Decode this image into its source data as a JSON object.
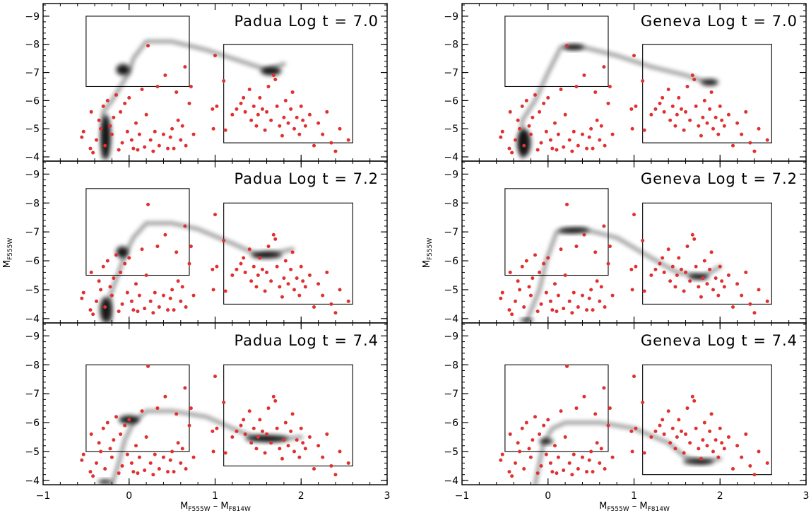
{
  "figure": {
    "xlabel_main": "M",
    "xlabel_sub1": "F555W",
    "xlabel_dash": " – M",
    "xlabel_sub2": "F814W",
    "ylabel_main": "M",
    "ylabel_sub": "F555W"
  },
  "colors": {
    "data_points": "#e03030",
    "isochrone": "#000000",
    "frame": "#000000"
  },
  "chart_data": [
    {
      "type": "scatter",
      "title": "Padua Log t = 7.0",
      "xlim": [
        -1,
        3
      ],
      "ylim": [
        -3.85,
        -9.45
      ],
      "xticks": [
        -1,
        0,
        1,
        2,
        3
      ],
      "yticks": [
        -4,
        -5,
        -6,
        -7,
        -8,
        -9
      ],
      "boxes": [
        {
          "x": [
            -0.5,
            0.7
          ],
          "y": [
            -6.5,
            -9.0
          ]
        },
        {
          "x": [
            1.1,
            2.6
          ],
          "y": [
            -4.5,
            -8.0
          ]
        }
      ],
      "isochrone": [
        [
          -0.3,
          -4.0
        ],
        [
          -0.3,
          -5.6
        ],
        [
          -0.2,
          -6.0
        ],
        [
          0.0,
          -7.0
        ],
        [
          0.05,
          -7.5
        ],
        [
          0.2,
          -8.1
        ],
        [
          0.5,
          -8.1
        ],
        [
          0.9,
          -7.8
        ],
        [
          1.3,
          -7.4
        ],
        [
          1.6,
          -7.1
        ],
        [
          1.8,
          -7.3
        ]
      ],
      "blobs": [
        {
          "x": -0.27,
          "y": -4.7,
          "rx": 0.06,
          "ry": 0.8
        },
        {
          "x": -0.07,
          "y": -7.1,
          "rx": 0.08,
          "ry": 0.2
        },
        {
          "x": 1.65,
          "y": -7.05,
          "rx": 0.12,
          "ry": 0.15
        }
      ]
    },
    {
      "type": "scatter",
      "title": "Padua Log t = 7.2",
      "xlim": [
        -1,
        3
      ],
      "ylim": [
        -3.85,
        -9.45
      ],
      "xticks": [
        -1,
        0,
        1,
        2,
        3
      ],
      "yticks": [
        -4,
        -5,
        -6,
        -7,
        -8,
        -9
      ],
      "boxes": [
        {
          "x": [
            -0.5,
            0.7
          ],
          "y": [
            -5.5,
            -8.5
          ]
        },
        {
          "x": [
            1.1,
            2.6
          ],
          "y": [
            -4.5,
            -8.0
          ]
        }
      ],
      "isochrone": [
        [
          -0.22,
          -3.9
        ],
        [
          -0.22,
          -4.8
        ],
        [
          -0.12,
          -5.6
        ],
        [
          -0.05,
          -6.2
        ],
        [
          0.05,
          -6.8
        ],
        [
          0.2,
          -7.3
        ],
        [
          0.5,
          -7.3
        ],
        [
          0.8,
          -7.1
        ],
        [
          1.2,
          -6.6
        ],
        [
          1.5,
          -6.2
        ],
        [
          1.75,
          -6.3
        ],
        [
          1.9,
          -6.4
        ]
      ],
      "blobs": [
        {
          "x": -0.27,
          "y": -4.3,
          "rx": 0.07,
          "ry": 0.45
        },
        {
          "x": -0.08,
          "y": -6.3,
          "rx": 0.07,
          "ry": 0.2
        },
        {
          "x": 1.6,
          "y": -6.2,
          "rx": 0.18,
          "ry": 0.12
        }
      ]
    },
    {
      "type": "scatter",
      "title": "Padua Log t = 7.4",
      "xlim": [
        -1,
        3
      ],
      "ylim": [
        -3.85,
        -9.45
      ],
      "xticks": [
        -1,
        0,
        1,
        2,
        3
      ],
      "yticks": [
        -4,
        -5,
        -6,
        -7,
        -8,
        -9
      ],
      "boxes": [
        {
          "x": [
            -0.5,
            0.7
          ],
          "y": [
            -5.0,
            -8.0
          ]
        },
        {
          "x": [
            1.1,
            2.6
          ],
          "y": [
            -4.5,
            -8.0
          ]
        }
      ],
      "isochrone": [
        [
          -0.2,
          -3.85
        ],
        [
          -0.12,
          -4.6
        ],
        [
          -0.05,
          -5.4
        ],
        [
          0.05,
          -6.0
        ],
        [
          0.2,
          -6.4
        ],
        [
          0.5,
          -6.4
        ],
        [
          0.9,
          -6.2
        ],
        [
          1.2,
          -5.8
        ],
        [
          1.45,
          -5.5
        ],
        [
          1.7,
          -5.4
        ],
        [
          2.0,
          -5.5
        ]
      ],
      "blobs": [
        {
          "x": 0.0,
          "y": -6.1,
          "rx": 0.12,
          "ry": 0.15
        },
        {
          "x": 1.6,
          "y": -5.45,
          "rx": 0.25,
          "ry": 0.12
        },
        {
          "x": -0.28,
          "y": -3.95,
          "rx": 0.08,
          "ry": 0.08
        }
      ]
    },
    {
      "type": "scatter",
      "title": "Geneva Log t = 7.0",
      "xlim": [
        -1,
        3
      ],
      "ylim": [
        -3.85,
        -9.45
      ],
      "xticks": [
        -1,
        0,
        1,
        2,
        3
      ],
      "yticks": [
        -4,
        -5,
        -6,
        -7,
        -8,
        -9
      ],
      "boxes": [
        {
          "x": [
            -0.5,
            0.7
          ],
          "y": [
            -6.5,
            -9.0
          ]
        },
        {
          "x": [
            1.1,
            2.6
          ],
          "y": [
            -4.5,
            -8.0
          ]
        }
      ],
      "isochrone": [
        [
          -0.3,
          -4.0
        ],
        [
          -0.3,
          -5.3
        ],
        [
          -0.15,
          -6.0
        ],
        [
          0.0,
          -7.0
        ],
        [
          0.15,
          -7.9
        ],
        [
          0.4,
          -7.9
        ],
        [
          0.8,
          -7.6
        ],
        [
          1.2,
          -7.2
        ],
        [
          1.6,
          -6.9
        ],
        [
          1.8,
          -6.7
        ]
      ],
      "blobs": [
        {
          "x": -0.28,
          "y": -4.5,
          "rx": 0.08,
          "ry": 0.5
        },
        {
          "x": 0.3,
          "y": -7.9,
          "rx": 0.12,
          "ry": 0.1
        },
        {
          "x": 1.88,
          "y": -6.65,
          "rx": 0.1,
          "ry": 0.12
        }
      ]
    },
    {
      "type": "scatter",
      "title": "Geneva Log t = 7.2",
      "xlim": [
        -1,
        3
      ],
      "ylim": [
        -3.85,
        -9.45
      ],
      "xticks": [
        -1,
        0,
        1,
        2,
        3
      ],
      "yticks": [
        -4,
        -5,
        -6,
        -7,
        -8,
        -9
      ],
      "boxes": [
        {
          "x": [
            -0.5,
            0.7
          ],
          "y": [
            -5.5,
            -8.5
          ]
        },
        {
          "x": [
            1.1,
            2.6
          ],
          "y": [
            -4.5,
            -8.0
          ]
        }
      ],
      "isochrone": [
        [
          -0.25,
          -3.9
        ],
        [
          -0.1,
          -5.0
        ],
        [
          -0.02,
          -6.0
        ],
        [
          0.1,
          -7.0
        ],
        [
          0.4,
          -7.1
        ],
        [
          0.8,
          -6.8
        ],
        [
          1.2,
          -6.1
        ],
        [
          1.5,
          -5.6
        ],
        [
          1.8,
          -5.45
        ],
        [
          2.0,
          -5.8
        ]
      ],
      "blobs": [
        {
          "x": 0.3,
          "y": -7.05,
          "rx": 0.18,
          "ry": 0.1
        },
        {
          "x": 1.75,
          "y": -5.45,
          "rx": 0.12,
          "ry": 0.1
        },
        {
          "x": -0.25,
          "y": -3.95,
          "rx": 0.08,
          "ry": 0.06
        }
      ]
    },
    {
      "type": "scatter",
      "title": "Geneva Log t = 7.4",
      "xlim": [
        -1,
        3
      ],
      "ylim": [
        -3.85,
        -9.45
      ],
      "xticks": [
        -1,
        0,
        1,
        2,
        3
      ],
      "yticks": [
        -4,
        -5,
        -6,
        -7,
        -8,
        -9
      ],
      "boxes": [
        {
          "x": [
            -0.5,
            0.7
          ],
          "y": [
            -5.0,
            -8.0
          ]
        },
        {
          "x": [
            1.1,
            2.6
          ],
          "y": [
            -4.2,
            -8.0
          ]
        }
      ],
      "isochrone": [
        [
          -0.15,
          -3.85
        ],
        [
          -0.1,
          -4.6
        ],
        [
          -0.05,
          -5.3
        ],
        [
          0.05,
          -5.8
        ],
        [
          0.2,
          -6.0
        ],
        [
          0.6,
          -6.0
        ],
        [
          1.0,
          -5.8
        ],
        [
          1.4,
          -5.3
        ],
        [
          1.6,
          -4.8
        ],
        [
          1.8,
          -4.65
        ],
        [
          2.0,
          -4.75
        ]
      ],
      "blobs": [
        {
          "x": -0.02,
          "y": -5.35,
          "rx": 0.08,
          "ry": 0.1
        },
        {
          "x": 1.75,
          "y": -4.65,
          "rx": 0.18,
          "ry": 0.1
        }
      ]
    }
  ],
  "shared_points": {
    "color": "#e03030",
    "points": [
      [
        -0.55,
        -4.7
      ],
      [
        -0.53,
        -4.9
      ],
      [
        -0.45,
        -4.3
      ],
      [
        -0.44,
        -5.6
      ],
      [
        -0.42,
        -4.15
      ],
      [
        -0.38,
        -4.6
      ],
      [
        -0.35,
        -5.3
      ],
      [
        -0.33,
        -5.0
      ],
      [
        -0.3,
        -5.8
      ],
      [
        -0.28,
        -4.4
      ],
      [
        -0.25,
        -6.0
      ],
      [
        -0.22,
        -5.1
      ],
      [
        -0.2,
        -4.8
      ],
      [
        -0.18,
        -5.4
      ],
      [
        -0.15,
        -6.2
      ],
      [
        -0.12,
        -4.25
      ],
      [
        -0.1,
        -5.6
      ],
      [
        -0.08,
        -4.5
      ],
      [
        -0.05,
        -5.9
      ],
      [
        -0.02,
        -4.9
      ],
      [
        0.0,
        -6.1
      ],
      [
        0.03,
        -4.6
      ],
      [
        0.05,
        -4.3
      ],
      [
        0.08,
        -5.2
      ],
      [
        0.1,
        -4.25
      ],
      [
        0.12,
        -4.8
      ],
      [
        0.15,
        -6.4
      ],
      [
        0.18,
        -4.35
      ],
      [
        0.2,
        -5.5
      ],
      [
        0.22,
        -7.95
      ],
      [
        0.25,
        -4.6
      ],
      [
        0.28,
        -4.2
      ],
      [
        0.3,
        -4.9
      ],
      [
        0.33,
        -6.5
      ],
      [
        0.35,
        -4.4
      ],
      [
        0.4,
        -4.8
      ],
      [
        0.42,
        -6.9
      ],
      [
        0.45,
        -4.3
      ],
      [
        0.48,
        -4.7
      ],
      [
        0.5,
        -5.0
      ],
      [
        0.52,
        -4.3
      ],
      [
        0.55,
        -6.3
      ],
      [
        0.57,
        -5.3
      ],
      [
        0.6,
        -4.6
      ],
      [
        0.62,
        -5.1
      ],
      [
        0.65,
        -7.2
      ],
      [
        0.66,
        -4.4
      ],
      [
        0.7,
        -5.9
      ],
      [
        0.72,
        -6.5
      ],
      [
        0.75,
        -4.8
      ],
      [
        0.97,
        -5.7
      ],
      [
        0.98,
        -5.0
      ],
      [
        1.0,
        -7.6
      ],
      [
        1.02,
        -5.8
      ],
      [
        1.1,
        -6.7
      ],
      [
        1.12,
        -4.95
      ],
      [
        1.2,
        -5.5
      ],
      [
        1.25,
        -5.7
      ],
      [
        1.3,
        -5.9
      ],
      [
        1.33,
        -6.1
      ],
      [
        1.35,
        -5.6
      ],
      [
        1.4,
        -6.4
      ],
      [
        1.42,
        -5.3
      ],
      [
        1.45,
        -5.8
      ],
      [
        1.48,
        -5.1
      ],
      [
        1.5,
        -5.5
      ],
      [
        1.52,
        -6.1
      ],
      [
        1.55,
        -5.7
      ],
      [
        1.58,
        -4.95
      ],
      [
        1.6,
        -5.6
      ],
      [
        1.62,
        -6.5
      ],
      [
        1.65,
        -5.3
      ],
      [
        1.68,
        -6.9
      ],
      [
        1.7,
        -6.75
      ],
      [
        1.72,
        -5.8
      ],
      [
        1.75,
        -5.1
      ],
      [
        1.78,
        -4.75
      ],
      [
        1.8,
        -5.4
      ],
      [
        1.82,
        -6.0
      ],
      [
        1.85,
        -5.2
      ],
      [
        1.88,
        -5.7
      ],
      [
        1.9,
        -6.3
      ],
      [
        1.92,
        -5.0
      ],
      [
        1.95,
        -5.4
      ],
      [
        1.98,
        -4.8
      ],
      [
        2.0,
        -5.8
      ],
      [
        2.02,
        -5.3
      ],
      [
        2.05,
        -5.1
      ],
      [
        2.1,
        -5.5
      ],
      [
        2.15,
        -4.4
      ],
      [
        2.2,
        -5.2
      ],
      [
        2.25,
        -4.8
      ],
      [
        2.3,
        -5.6
      ],
      [
        2.35,
        -4.5
      ],
      [
        2.4,
        -4.2
      ],
      [
        2.45,
        -5.0
      ],
      [
        2.55,
        -4.6
      ]
    ]
  }
}
